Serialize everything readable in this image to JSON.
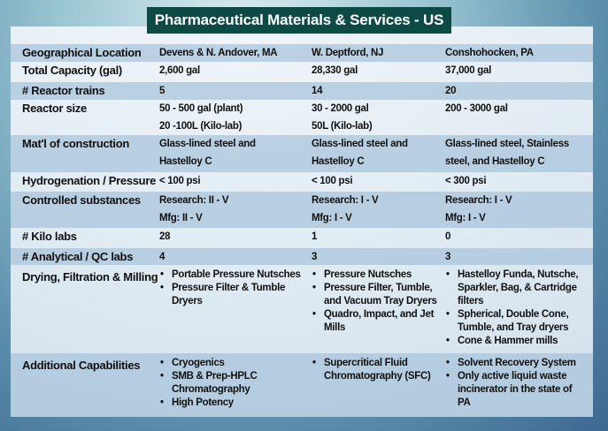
{
  "title": "Pharmaceutical Materials & Services - US",
  "rows": [
    {
      "label": "Geographical Location",
      "values": [
        [
          "Devens & N. Andover, MA"
        ],
        [
          "W. Deptford, NJ"
        ],
        [
          "Conshohocken, PA"
        ]
      ]
    },
    {
      "label": "Total Capacity (gal)",
      "values": [
        [
          "2,600 gal"
        ],
        [
          "28,330 gal"
        ],
        [
          "37,000 gal"
        ]
      ]
    },
    {
      "label": "# Reactor trains",
      "values": [
        [
          "5"
        ],
        [
          "14"
        ],
        [
          "20"
        ]
      ]
    },
    {
      "label": "Reactor size",
      "values": [
        [
          "50 - 500 gal (plant)",
          "20 -100L (Kilo-lab)"
        ],
        [
          "30 - 2000 gal",
          "50L (Kilo-lab)"
        ],
        [
          "200 - 3000 gal"
        ]
      ]
    },
    {
      "label": "Mat'l of construction",
      "values": [
        [
          "Glass-lined steel and",
          "Hastelloy C"
        ],
        [
          "Glass-lined steel and",
          "Hastelloy C"
        ],
        [
          "Glass-lined steel, Stainless",
          "steel, and Hastelloy C"
        ]
      ]
    },
    {
      "label": "Hydrogenation / Pressure",
      "values": [
        [
          "< 100 psi"
        ],
        [
          "< 100 psi"
        ],
        [
          "< 300 psi"
        ]
      ]
    },
    {
      "label": "Controlled substances",
      "values": [
        [
          "Research:  II - V",
          "Mfg:  II - V"
        ],
        [
          "Research:  I - V",
          "Mfg:  I - V"
        ],
        [
          "Research:  I - V",
          "Mfg:  I - V"
        ]
      ]
    },
    {
      "label": "# Kilo labs",
      "values": [
        [
          "28"
        ],
        [
          "1"
        ],
        [
          "0"
        ]
      ]
    },
    {
      "label": "# Analytical / QC labs",
      "values": [
        [
          "4"
        ],
        [
          "3"
        ],
        [
          "3"
        ]
      ]
    },
    {
      "label": "Drying, Filtration & Milling",
      "bullets": [
        [
          "Portable Pressure Nutsches",
          "Pressure Filter & Tumble Dryers"
        ],
        [
          "Pressure Nutsches",
          "Pressure Filter, Tumble, and Vacuum Tray Dryers",
          "Quadro, Impact, and Jet Mills"
        ],
        [
          "Hastelloy Funda, Nutsche, Sparkler, Bag, & Cartridge filters",
          "Spherical, Double Cone, Tumble, and Tray dryers",
          "Cone & Hammer mills"
        ]
      ]
    },
    {
      "label": "Additional Capabilities",
      "bullets": [
        [
          "Cryogenics",
          "SMB & Prep-HPLC Chromatography",
          "High Potency"
        ],
        [
          "Supercritical Fluid Chromatography (SFC)"
        ],
        [
          "Solvent Recovery System",
          "Only active liquid waste incinerator in the state of PA"
        ]
      ]
    }
  ]
}
